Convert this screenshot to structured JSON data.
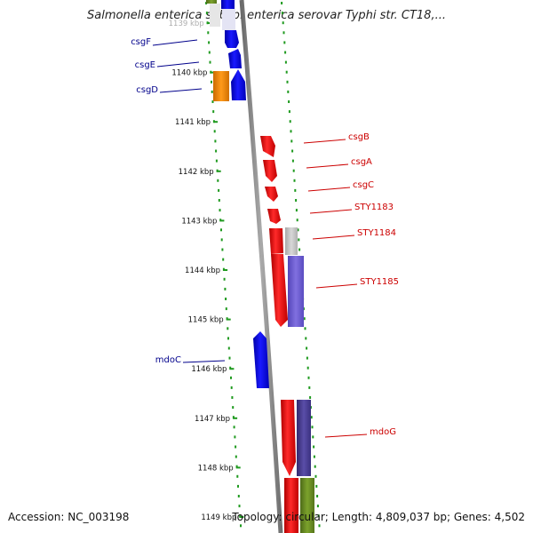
{
  "title": "Salmonella enterica subsp. enterica serovar Typhi str. CT18,...",
  "accession": "Accession: NC_003198",
  "topology": "Topology: circular; Length: 4,809,037 bp; Genes: 4,502",
  "colors": {
    "backbone": "#8a8a8a",
    "ticks": "#1f9a1f",
    "plus_strand": "#ff0000",
    "minus_strand": "#0000ff",
    "orange": "#ff8800",
    "olive": "#6b8e23",
    "grey": "#c0c0c0",
    "slate": "#6a5acd",
    "navy": "#483d8b",
    "left_label": "#00008b",
    "right_label": "#cc0000"
  },
  "kbp_labels": [
    "1139 kbp",
    "1140 kbp",
    "1141 kbp",
    "1142 kbp",
    "1143 kbp",
    "1144 kbp",
    "1145 kbp",
    "1146 kbp",
    "1147 kbp",
    "1148 kbp",
    "1149 kbp"
  ],
  "genes_left": [
    {
      "name": "csgF"
    },
    {
      "name": "csgE"
    },
    {
      "name": "csgD"
    },
    {
      "name": "mdoC"
    }
  ],
  "genes_right": [
    {
      "name": "csgB"
    },
    {
      "name": "csgA"
    },
    {
      "name": "csgC"
    },
    {
      "name": "STY1183"
    },
    {
      "name": "STY1184"
    },
    {
      "name": "STY1185"
    },
    {
      "name": "mdoG"
    }
  ]
}
